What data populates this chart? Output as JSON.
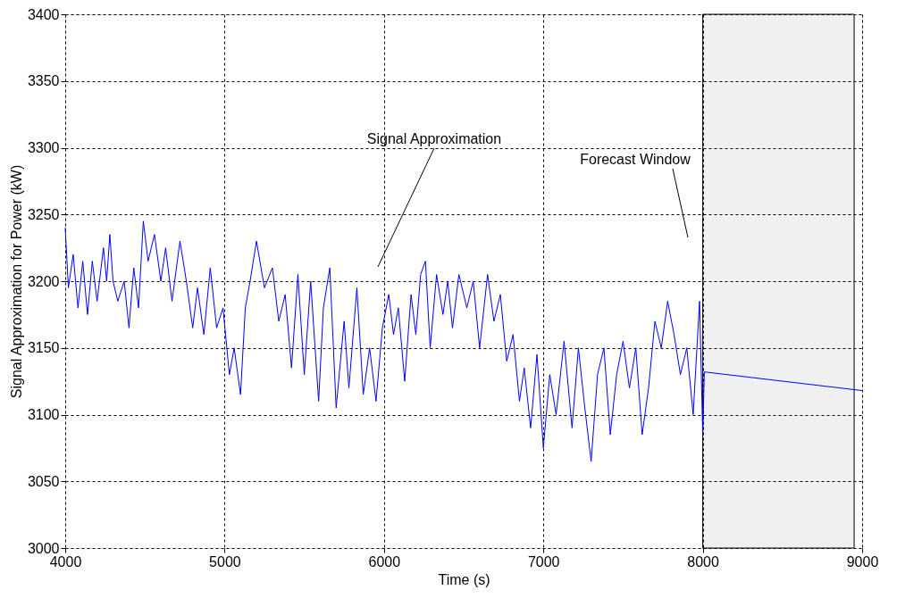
{
  "chart_data": {
    "type": "line",
    "xlabel": "Time (s)",
    "ylabel": "Signal Approximation for Power (kW)",
    "xlim": [
      4000,
      9000
    ],
    "xticks": [
      4000,
      5000,
      6000,
      7000,
      8000,
      9000
    ],
    "ylim": [
      3000,
      3400
    ],
    "yticks": [
      3000,
      3050,
      3100,
      3150,
      3200,
      3250,
      3300,
      3350,
      3400
    ],
    "grid": true,
    "marker": "none",
    "line_style": "solid",
    "series": [
      {
        "color": "#0000ff",
        "x": [
          4000,
          4020,
          4050,
          4080,
          4110,
          4140,
          4170,
          4200,
          4240,
          4260,
          4280,
          4300,
          4330,
          4370,
          4400,
          4430,
          4460,
          4490,
          4520,
          4560,
          4600,
          4630,
          4670,
          4720,
          4760,
          4800,
          4830,
          4870,
          4910,
          4950,
          4990,
          5030,
          5060,
          5100,
          5130,
          5160,
          5200,
          5250,
          5300,
          5340,
          5380,
          5420,
          5460,
          5500,
          5540,
          5590,
          5620,
          5660,
          5700,
          5750,
          5780,
          5830,
          5870,
          5910,
          5950,
          5990,
          6030,
          6060,
          6090,
          6130,
          6170,
          6200,
          6230,
          6260,
          6290,
          6330,
          6370,
          6400,
          6430,
          6470,
          6520,
          6560,
          6600,
          6650,
          6690,
          6730,
          6770,
          6810,
          6850,
          6880,
          6920,
          6960,
          7000,
          7040,
          7080,
          7130,
          7180,
          7220,
          7260,
          7300,
          7340,
          7380,
          7420,
          7460,
          7500,
          7540,
          7580,
          7620,
          7660,
          7700,
          7740,
          7780,
          7820,
          7860,
          7900,
          7940,
          7980,
          8000,
          8010,
          9000
        ],
        "values": [
          3240,
          3195,
          3220,
          3180,
          3215,
          3175,
          3215,
          3185,
          3225,
          3200,
          3235,
          3200,
          3185,
          3200,
          3165,
          3210,
          3180,
          3245,
          3215,
          3235,
          3200,
          3225,
          3185,
          3230,
          3200,
          3165,
          3195,
          3160,
          3210,
          3165,
          3180,
          3130,
          3150,
          3115,
          3180,
          3200,
          3230,
          3195,
          3210,
          3170,
          3190,
          3135,
          3205,
          3130,
          3200,
          3110,
          3180,
          3210,
          3105,
          3170,
          3120,
          3195,
          3115,
          3150,
          3110,
          3165,
          3190,
          3160,
          3180,
          3125,
          3190,
          3160,
          3205,
          3215,
          3150,
          3205,
          3175,
          3200,
          3165,
          3205,
          3180,
          3200,
          3150,
          3205,
          3170,
          3190,
          3140,
          3160,
          3110,
          3135,
          3090,
          3145,
          3075,
          3130,
          3100,
          3155,
          3090,
          3150,
          3105,
          3065,
          3130,
          3150,
          3085,
          3130,
          3155,
          3120,
          3150,
          3085,
          3120,
          3170,
          3150,
          3185,
          3160,
          3130,
          3150,
          3100,
          3185,
          3085,
          3132,
          3118
        ]
      }
    ],
    "bands": [
      {
        "axis": "x",
        "from": 8000,
        "to": 8950,
        "color": "#000000"
      }
    ],
    "annotations": [
      "Signal Approximation",
      "Forecast Window"
    ]
  }
}
